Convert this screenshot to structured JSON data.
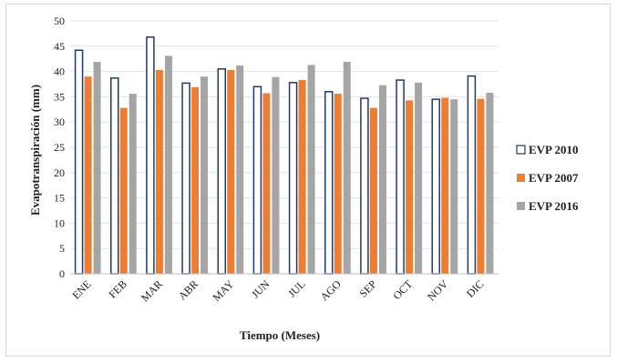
{
  "chart_data": {
    "type": "bar",
    "title": "",
    "xlabel": "Tiempo  (Meses)",
    "ylabel": "Evapotranspiración  (mm)",
    "ylim": [
      0,
      50
    ],
    "yticks": [
      0,
      5,
      10,
      15,
      20,
      25,
      30,
      35,
      40,
      45,
      50
    ],
    "grid": true,
    "legend_position": "right",
    "categories": [
      "ENE",
      "FEB",
      "MAR",
      "ABR",
      "MAY",
      "JUN",
      "JUL",
      "AGO",
      "SEP",
      "OCT",
      "NOV",
      "DIC"
    ],
    "series": [
      {
        "name": "EVP 2010",
        "color": "#ffffff",
        "outline": "#1f3a68",
        "values": [
          44.2,
          38.7,
          46.8,
          37.7,
          40.5,
          37.0,
          37.8,
          36.0,
          34.7,
          38.3,
          34.5,
          39.1
        ]
      },
      {
        "name": "EVP 2007",
        "color": "#ed7d31",
        "values": [
          39.0,
          32.8,
          40.3,
          36.9,
          40.3,
          35.7,
          38.3,
          35.6,
          32.8,
          34.3,
          34.8,
          34.6
        ]
      },
      {
        "name": "EVP 2016",
        "color": "#a5a5a5",
        "values": [
          41.9,
          35.6,
          43.1,
          39.0,
          41.2,
          38.9,
          41.3,
          41.9,
          37.3,
          37.8,
          34.5,
          35.8
        ]
      }
    ]
  }
}
